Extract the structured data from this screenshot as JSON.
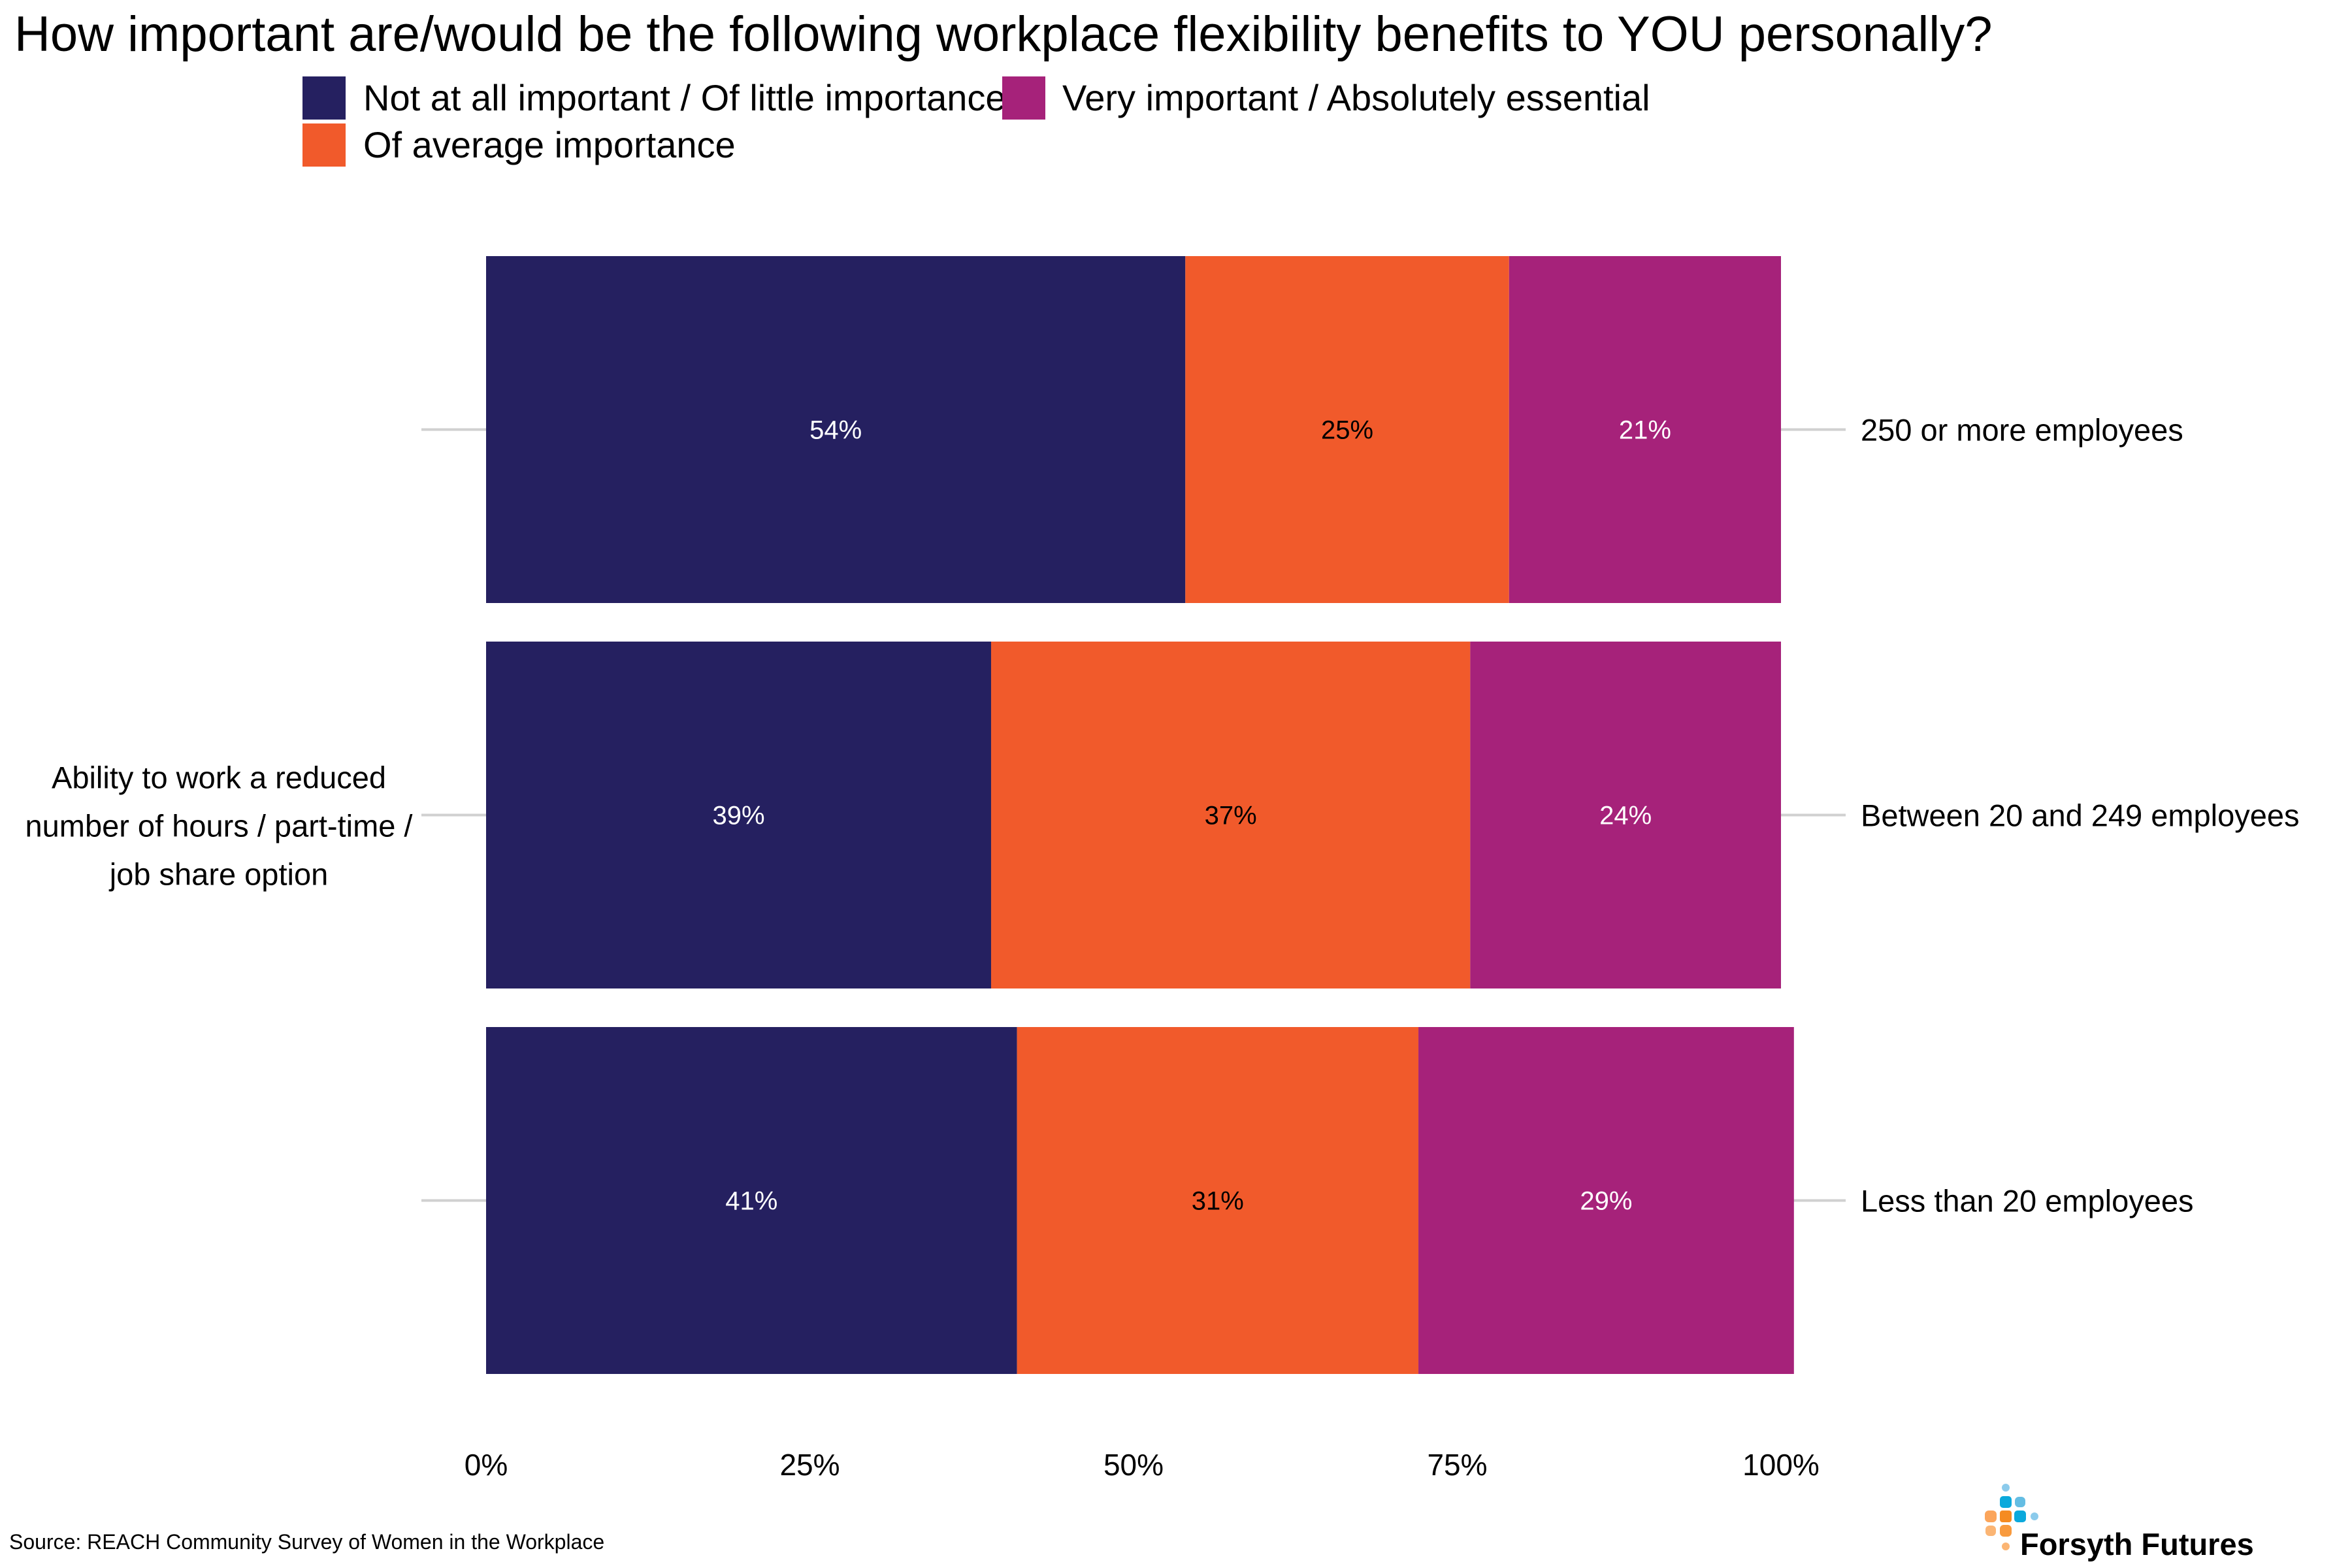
{
  "title": "How important are/would be the following workplace flexibility benefits to YOU personally?",
  "source": "Source: REACH Community Survey of Women in the Workplace",
  "logo": {
    "name": "Forsyth Futures",
    "colors": [
      "#0ba9dc",
      "#64bde3",
      "#8ccbec",
      "#f58b21",
      "#fba55b",
      "#fbb574"
    ]
  },
  "colors": {
    "not_important": "#252060",
    "average": "#f15a2b",
    "very_important": "#a6227a",
    "tick_line": "#d0d0d0"
  },
  "chart_data": {
    "type": "bar",
    "orientation": "horizontal",
    "stacked": true,
    "title": "How important are/would be the following workplace flexibility benefits to YOU personally?",
    "xlabel": "",
    "ylabel": "",
    "left_category_label": "Ability to work a reduced number of hours / part-time / job share option",
    "categories": [
      "250 or more employees",
      "Between 20 and 249 employees",
      "Less than 20 employees"
    ],
    "series": [
      {
        "name": "Not at all important / Of little importance",
        "color": "#252060",
        "label_color": "#ffffff",
        "values": [
          54,
          39,
          41
        ]
      },
      {
        "name": "Of average importance",
        "color": "#f15a2b",
        "label_color": "#000000",
        "values": [
          25,
          37,
          31
        ]
      },
      {
        "name": "Very important / Absolutely essential",
        "color": "#a6227a",
        "label_color": "#ffffff",
        "values": [
          21,
          24,
          29
        ]
      }
    ],
    "data_labels": [
      [
        "54%",
        "39%",
        "41%"
      ],
      [
        "25%",
        "37%",
        "31%"
      ],
      [
        "21%",
        "24%",
        "29%"
      ]
    ],
    "xlim": [
      0,
      100
    ],
    "xticks": [
      0,
      25,
      50,
      75,
      100
    ],
    "xtick_labels": [
      "0%",
      "25%",
      "50%",
      "75%",
      "100%"
    ],
    "grid": false,
    "legend": {
      "placement": "top",
      "entries": [
        "Not at all important / Of little importance",
        "Very important / Absolutely essential",
        "Of average importance"
      ]
    }
  }
}
